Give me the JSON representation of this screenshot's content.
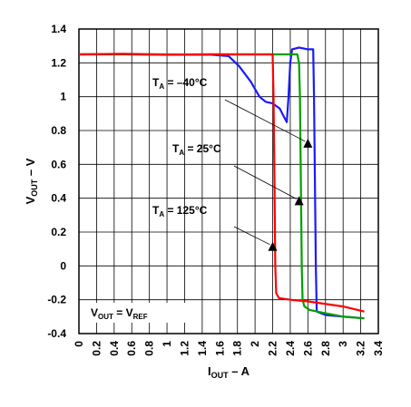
{
  "chart_data": {
    "type": "line",
    "xlim": [
      0,
      3.4
    ],
    "ylim": [
      -0.4,
      1.4
    ],
    "x_ticks": [
      "0",
      "0.2",
      "0.4",
      "0.6",
      "0.8",
      "1",
      "1.2",
      "1.4",
      "1.6",
      "1.8",
      "2",
      "2.2",
      "2.4",
      "2.6",
      "2.8",
      "3",
      "3.2",
      "3.4"
    ],
    "y_ticks": [
      "1.4",
      "1.2",
      "1",
      "0.8",
      "0.6",
      "0.4",
      "0.2",
      "0",
      "-0.2",
      "-0.4"
    ],
    "xlabel": {
      "main": "I",
      "sub": "OUT",
      "rest": " – A"
    },
    "ylabel": {
      "main": "V",
      "sub": "OUT",
      "rest": " – V"
    },
    "grid": true,
    "inset_label": {
      "a": "V",
      "a_sub": "OUT",
      "mid": " = V",
      "b_sub": "REF"
    },
    "annotations": [
      {
        "t": "T",
        "sub": "A",
        "rest": " = –40°C",
        "arrow_to": [
          2.6,
          0.72
        ]
      },
      {
        "t": "T",
        "sub": "A",
        "rest": " = 25°C",
        "arrow_to": [
          2.5,
          0.38
        ]
      },
      {
        "t": "T",
        "sub": "A",
        "rest": " = 125°C",
        "arrow_to": [
          2.2,
          0.11
        ]
      }
    ],
    "series": [
      {
        "color": "#1a1aff",
        "points": [
          [
            0,
            1.25
          ],
          [
            0.5,
            1.25
          ],
          [
            1.0,
            1.248
          ],
          [
            1.5,
            1.248
          ],
          [
            1.7,
            1.24
          ],
          [
            1.82,
            1.18
          ],
          [
            1.95,
            1.09
          ],
          [
            2.05,
            1.0
          ],
          [
            2.12,
            0.97
          ],
          [
            2.2,
            0.96
          ],
          [
            2.28,
            0.93
          ],
          [
            2.33,
            0.88
          ],
          [
            2.36,
            0.85
          ],
          [
            2.38,
            1.0
          ],
          [
            2.4,
            1.2
          ],
          [
            2.42,
            1.28
          ],
          [
            2.5,
            1.29
          ],
          [
            2.6,
            1.28
          ],
          [
            2.66,
            1.28
          ],
          [
            2.67,
            1.0
          ],
          [
            2.68,
            0.5
          ],
          [
            2.69,
            0.0
          ],
          [
            2.7,
            -0.27
          ],
          [
            2.8,
            -0.29
          ],
          [
            3.0,
            -0.3
          ],
          [
            3.24,
            -0.31
          ]
        ]
      },
      {
        "color": "#00a000",
        "points": [
          [
            0,
            1.25
          ],
          [
            0.5,
            1.251
          ],
          [
            1.0,
            1.25
          ],
          [
            1.5,
            1.249
          ],
          [
            2.0,
            1.25
          ],
          [
            2.3,
            1.25
          ],
          [
            2.48,
            1.25
          ],
          [
            2.5,
            1.2
          ],
          [
            2.51,
            1.0
          ],
          [
            2.52,
            0.5
          ],
          [
            2.53,
            0.0
          ],
          [
            2.54,
            -0.2
          ],
          [
            2.56,
            -0.24
          ],
          [
            2.62,
            -0.26
          ],
          [
            2.8,
            -0.28
          ],
          [
            3.0,
            -0.3
          ],
          [
            3.24,
            -0.31
          ]
        ]
      },
      {
        "color": "#ff0000",
        "points": [
          [
            0,
            1.25
          ],
          [
            0.5,
            1.253
          ],
          [
            1.0,
            1.249
          ],
          [
            1.5,
            1.251
          ],
          [
            2.0,
            1.25
          ],
          [
            2.2,
            1.25
          ],
          [
            2.21,
            1.0
          ],
          [
            2.22,
            0.5
          ],
          [
            2.23,
            0.0
          ],
          [
            2.24,
            -0.16
          ],
          [
            2.27,
            -0.19
          ],
          [
            2.4,
            -0.2
          ],
          [
            2.6,
            -0.21
          ],
          [
            3.0,
            -0.24
          ],
          [
            3.24,
            -0.27
          ]
        ]
      }
    ]
  }
}
